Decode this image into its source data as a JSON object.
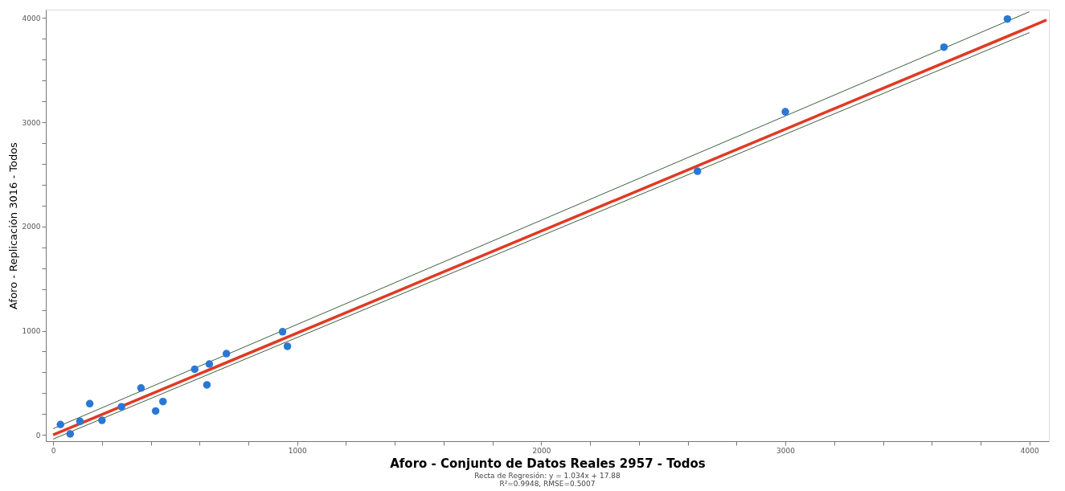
{
  "chart_data": {
    "type": "scatter",
    "xlabel": "Aforo - Conjunto de Datos Reales 2957 - Todos",
    "ylabel": "Aforo - Replicación 3016 - Todos",
    "annotations": [
      "Recta de Regresión: y = 1.034x + 17.88",
      "R²=0.9948, RMSE=0.5007"
    ],
    "xlim": [
      -30,
      4080
    ],
    "ylim": [
      -60,
      4080
    ],
    "xticks": [
      0,
      {
        "value": 200,
        "label": null
      },
      {
        "value": 400,
        "label": null
      },
      {
        "value": 600,
        "label": null
      },
      {
        "value": 800,
        "label": null
      },
      1000,
      {
        "value": 1200,
        "label": null
      },
      {
        "value": 1400,
        "label": null
      },
      {
        "value": 1600,
        "label": null
      },
      {
        "value": 1800,
        "label": null
      },
      2000,
      {
        "value": 2200,
        "label": null
      },
      {
        "value": 2400,
        "label": null
      },
      {
        "value": 2600,
        "label": null
      },
      {
        "value": 2800,
        "label": null
      },
      3000,
      {
        "value": 3200,
        "label": null
      },
      {
        "value": 3400,
        "label": null
      },
      {
        "value": 3600,
        "label": null
      },
      {
        "value": 3800,
        "label": null
      },
      4000
    ],
    "yticks": [
      0,
      {
        "value": 200,
        "label": null
      },
      {
        "value": 400,
        "label": null
      },
      {
        "value": 600,
        "label": null
      },
      {
        "value": 800,
        "label": null
      },
      1000,
      {
        "value": 1200,
        "label": null
      },
      {
        "value": 1400,
        "label": null
      },
      {
        "value": 1600,
        "label": null
      },
      {
        "value": 1800,
        "label": null
      },
      2000,
      {
        "value": 2200,
        "label": null
      },
      {
        "value": 2400,
        "label": null
      },
      {
        "value": 2600,
        "label": null
      },
      {
        "value": 2800,
        "label": null
      },
      3000,
      {
        "value": 3200,
        "label": null
      },
      {
        "value": 3400,
        "label": null
      },
      {
        "value": 3600,
        "label": null
      },
      {
        "value": 3800,
        "label": null
      },
      4000
    ],
    "grid": false,
    "marker": "circle",
    "series": [
      {
        "type": "line",
        "marker": "none",
        "color": "#3f5f3f",
        "x": [
          0,
          4000
        ],
        "values": [
          60,
          4060
        ],
        "line_style": "solid"
      },
      {
        "type": "line",
        "marker": "none",
        "color": "#3f5f3f",
        "x": [
          0,
          4000
        ],
        "values": [
          -40,
          3860
        ],
        "line_style": "solid"
      },
      {
        "type": "line",
        "marker": "none",
        "color": "#e03a24",
        "x": [
          0,
          4070
        ],
        "values": [
          0,
          3980
        ],
        "line_style": "solid"
      },
      {
        "color": "#2a78d4",
        "x": [
          30,
          70,
          110,
          150,
          200,
          280,
          360,
          420,
          450,
          580,
          630,
          640,
          710,
          940,
          960,
          2640,
          3000,
          3650,
          3910
        ],
        "values": [
          100,
          10,
          130,
          300,
          140,
          270,
          450,
          230,
          320,
          630,
          480,
          680,
          780,
          990,
          850,
          2530,
          3100,
          3720,
          3990
        ]
      }
    ]
  }
}
